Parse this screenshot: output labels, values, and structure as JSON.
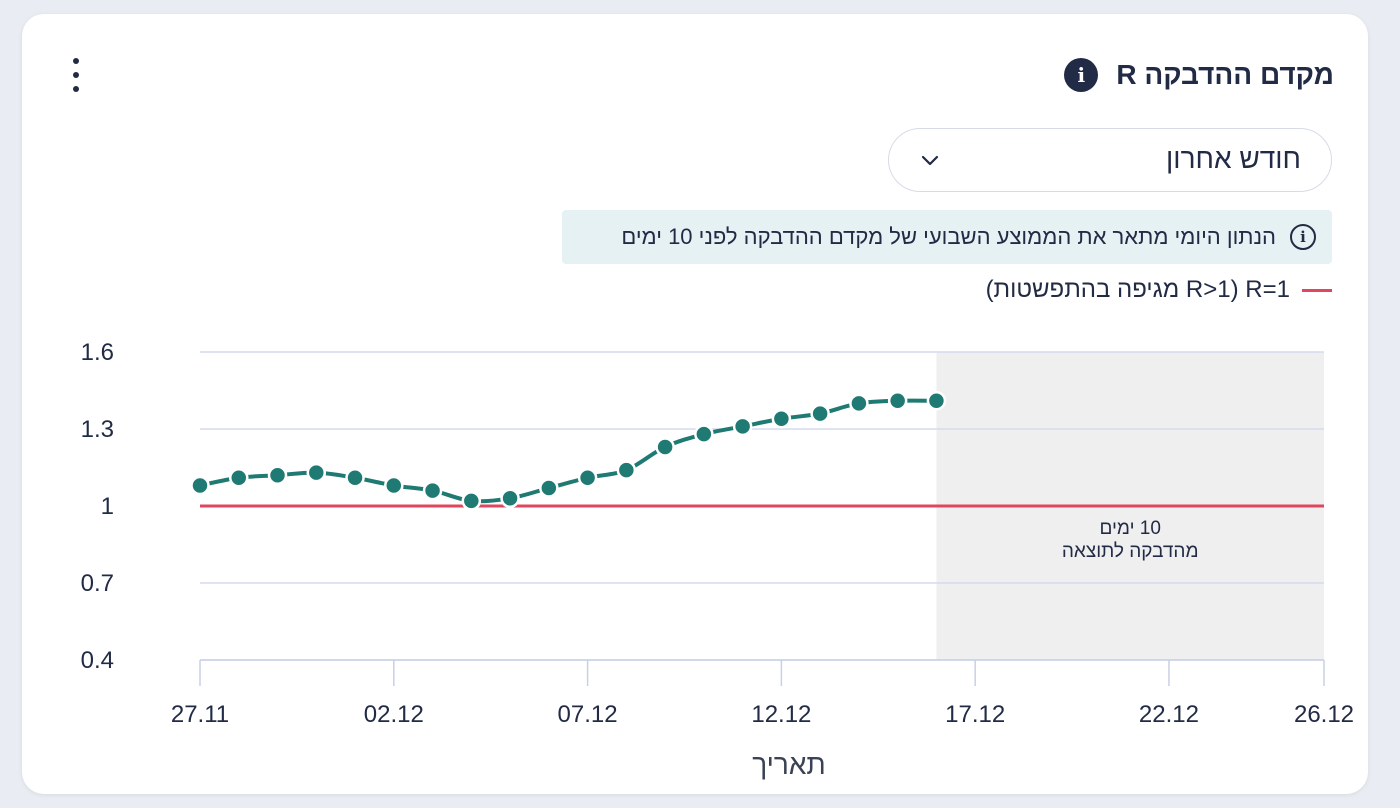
{
  "header": {
    "title": "מקדם ההדבקה R",
    "info_glyph": "i",
    "menu_icon": "kebab-vertical-icon"
  },
  "filter": {
    "selected": "חודש אחרון",
    "icon": "chevron-down-icon"
  },
  "note": {
    "glyph": "i",
    "text": "הנתון היומי מתאר את הממוצע השבועי של מקדם ההדבקה לפני 10 ימים"
  },
  "legend": {
    "text": "R=1 (R>1 מגיפה בהתפשטות)",
    "color": "#e0475f"
  },
  "chart_data": {
    "type": "line",
    "xlabel": "תאריך",
    "ylabel": "",
    "ylim": [
      0.4,
      1.6
    ],
    "y_ticks": [
      "1.6",
      "1.3",
      "1",
      "0.7",
      "0.4"
    ],
    "y_tick_values": [
      1.6,
      1.3,
      1.0,
      0.7,
      0.4
    ],
    "x_ticks": [
      "27.11",
      "02.12",
      "07.12",
      "12.12",
      "17.12",
      "22.12",
      "26.12"
    ],
    "x_tick_days": [
      0,
      5,
      10,
      15,
      20,
      25,
      29
    ],
    "x_day_range": [
      0,
      29
    ],
    "series": [
      {
        "color": "#1f7a73",
        "x": [
          0,
          1,
          2,
          3,
          4,
          5,
          6,
          7,
          8,
          9,
          10,
          11,
          12,
          13,
          14,
          15,
          16,
          17,
          18,
          19
        ],
        "values": [
          1.08,
          1.11,
          1.12,
          1.13,
          1.11,
          1.08,
          1.06,
          1.02,
          1.03,
          1.07,
          1.11,
          1.14,
          1.23,
          1.28,
          1.31,
          1.34,
          1.36,
          1.4,
          1.41,
          1.41
        ]
      }
    ],
    "reference_line": {
      "y": 1.0,
      "color": "#e0475f"
    },
    "shaded_region": {
      "x_start": 19,
      "x_end": 29,
      "label_line1": "10 ימים",
      "label_line2": "מהדבקה לתוצאה",
      "color": "#efefef"
    },
    "grid": true
  }
}
